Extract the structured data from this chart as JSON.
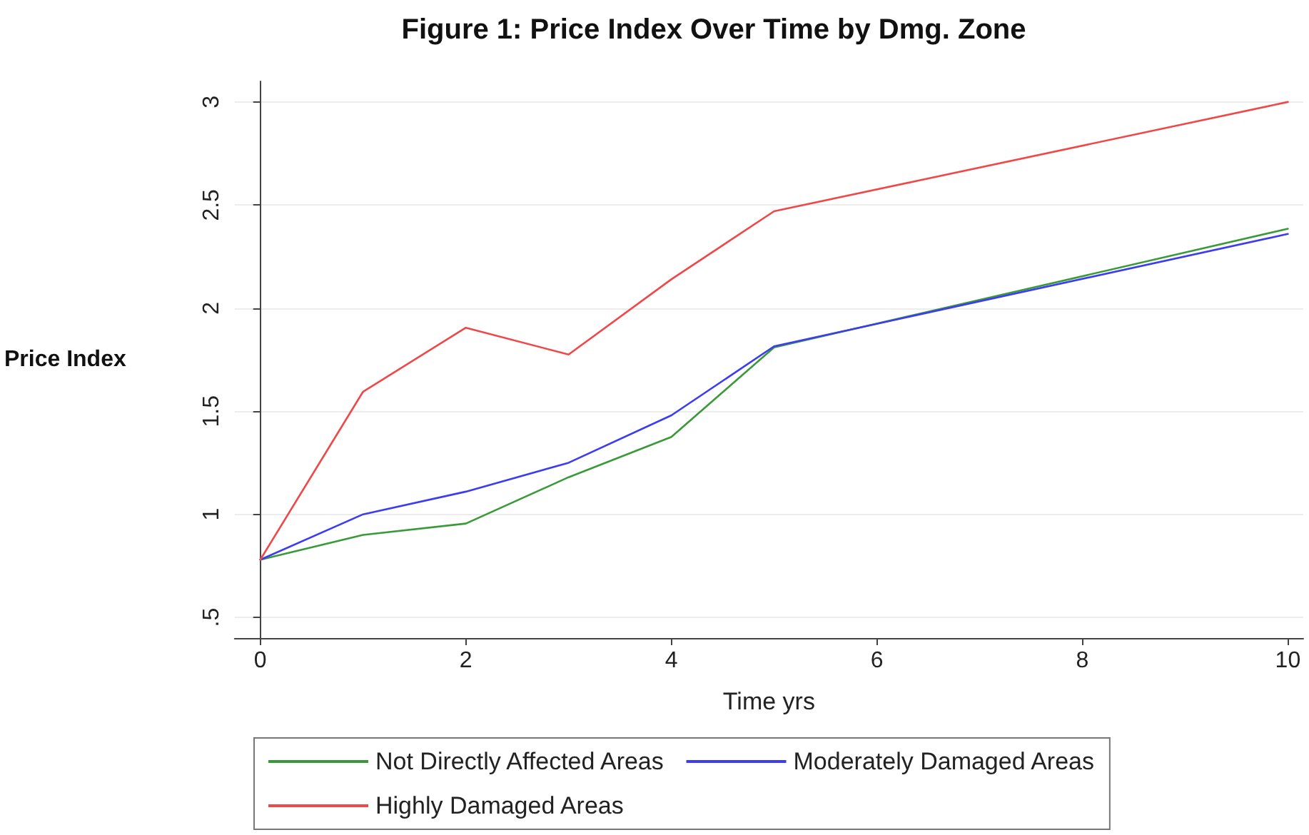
{
  "chart_data": {
    "type": "line",
    "title": "Figure 1: Price Index Over Time by Dmg. Zone",
    "xlabel": "Time yrs",
    "ylabel": "Price Index",
    "x": [
      0,
      1,
      2,
      3,
      4,
      5,
      10
    ],
    "series": [
      {
        "name": "Not Directly Affected Areas",
        "color": "#3a9a3a",
        "values": [
          0.78,
          0.9,
          0.955,
          1.18,
          1.375,
          1.81,
          2.385
        ]
      },
      {
        "name": "Moderately Damaged Areas",
        "color": "#3c3cf0",
        "values": [
          0.78,
          1.0,
          1.11,
          1.25,
          1.48,
          1.815,
          2.36
        ]
      },
      {
        "name": "Highly Damaged Areas",
        "color": "#f04848",
        "values": [
          0.78,
          1.595,
          1.905,
          1.775,
          2.14,
          2.47,
          3.0
        ]
      }
    ],
    "xlim": [
      -0.25,
      10.15
    ],
    "xticks": [
      0,
      2,
      4,
      6,
      8,
      10
    ],
    "ylim": [
      0.4,
      3.1
    ],
    "yticks": [
      {
        "value": 0.5,
        "label": ".5"
      },
      1,
      1.5,
      2,
      2.5,
      3
    ],
    "grid": "y",
    "legend": "bottom",
    "marker": "none",
    "line_style": "solid"
  }
}
